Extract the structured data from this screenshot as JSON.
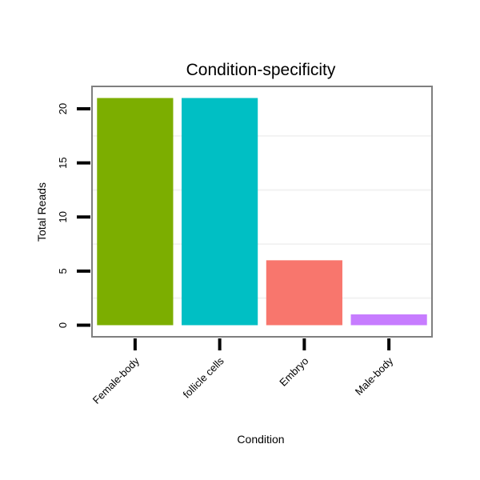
{
  "chart_data": {
    "type": "bar",
    "title": "Condition-specificity",
    "xlabel": "Condition",
    "ylabel": "Total Reads",
    "categories": [
      "Female-body",
      "follicle cells",
      "Embryo",
      "Male-body"
    ],
    "values": [
      21,
      21,
      6,
      1
    ],
    "colors": [
      "#7CAE00",
      "#00BFC4",
      "#F8766D",
      "#C77CFF"
    ],
    "ylim": [
      -1,
      22
    ],
    "yticks": [
      0,
      5,
      10,
      15,
      20
    ],
    "minor_grid": [
      2.5,
      7.5,
      12.5,
      17.5,
      22.5
    ],
    "grid": true,
    "legend": "none"
  }
}
